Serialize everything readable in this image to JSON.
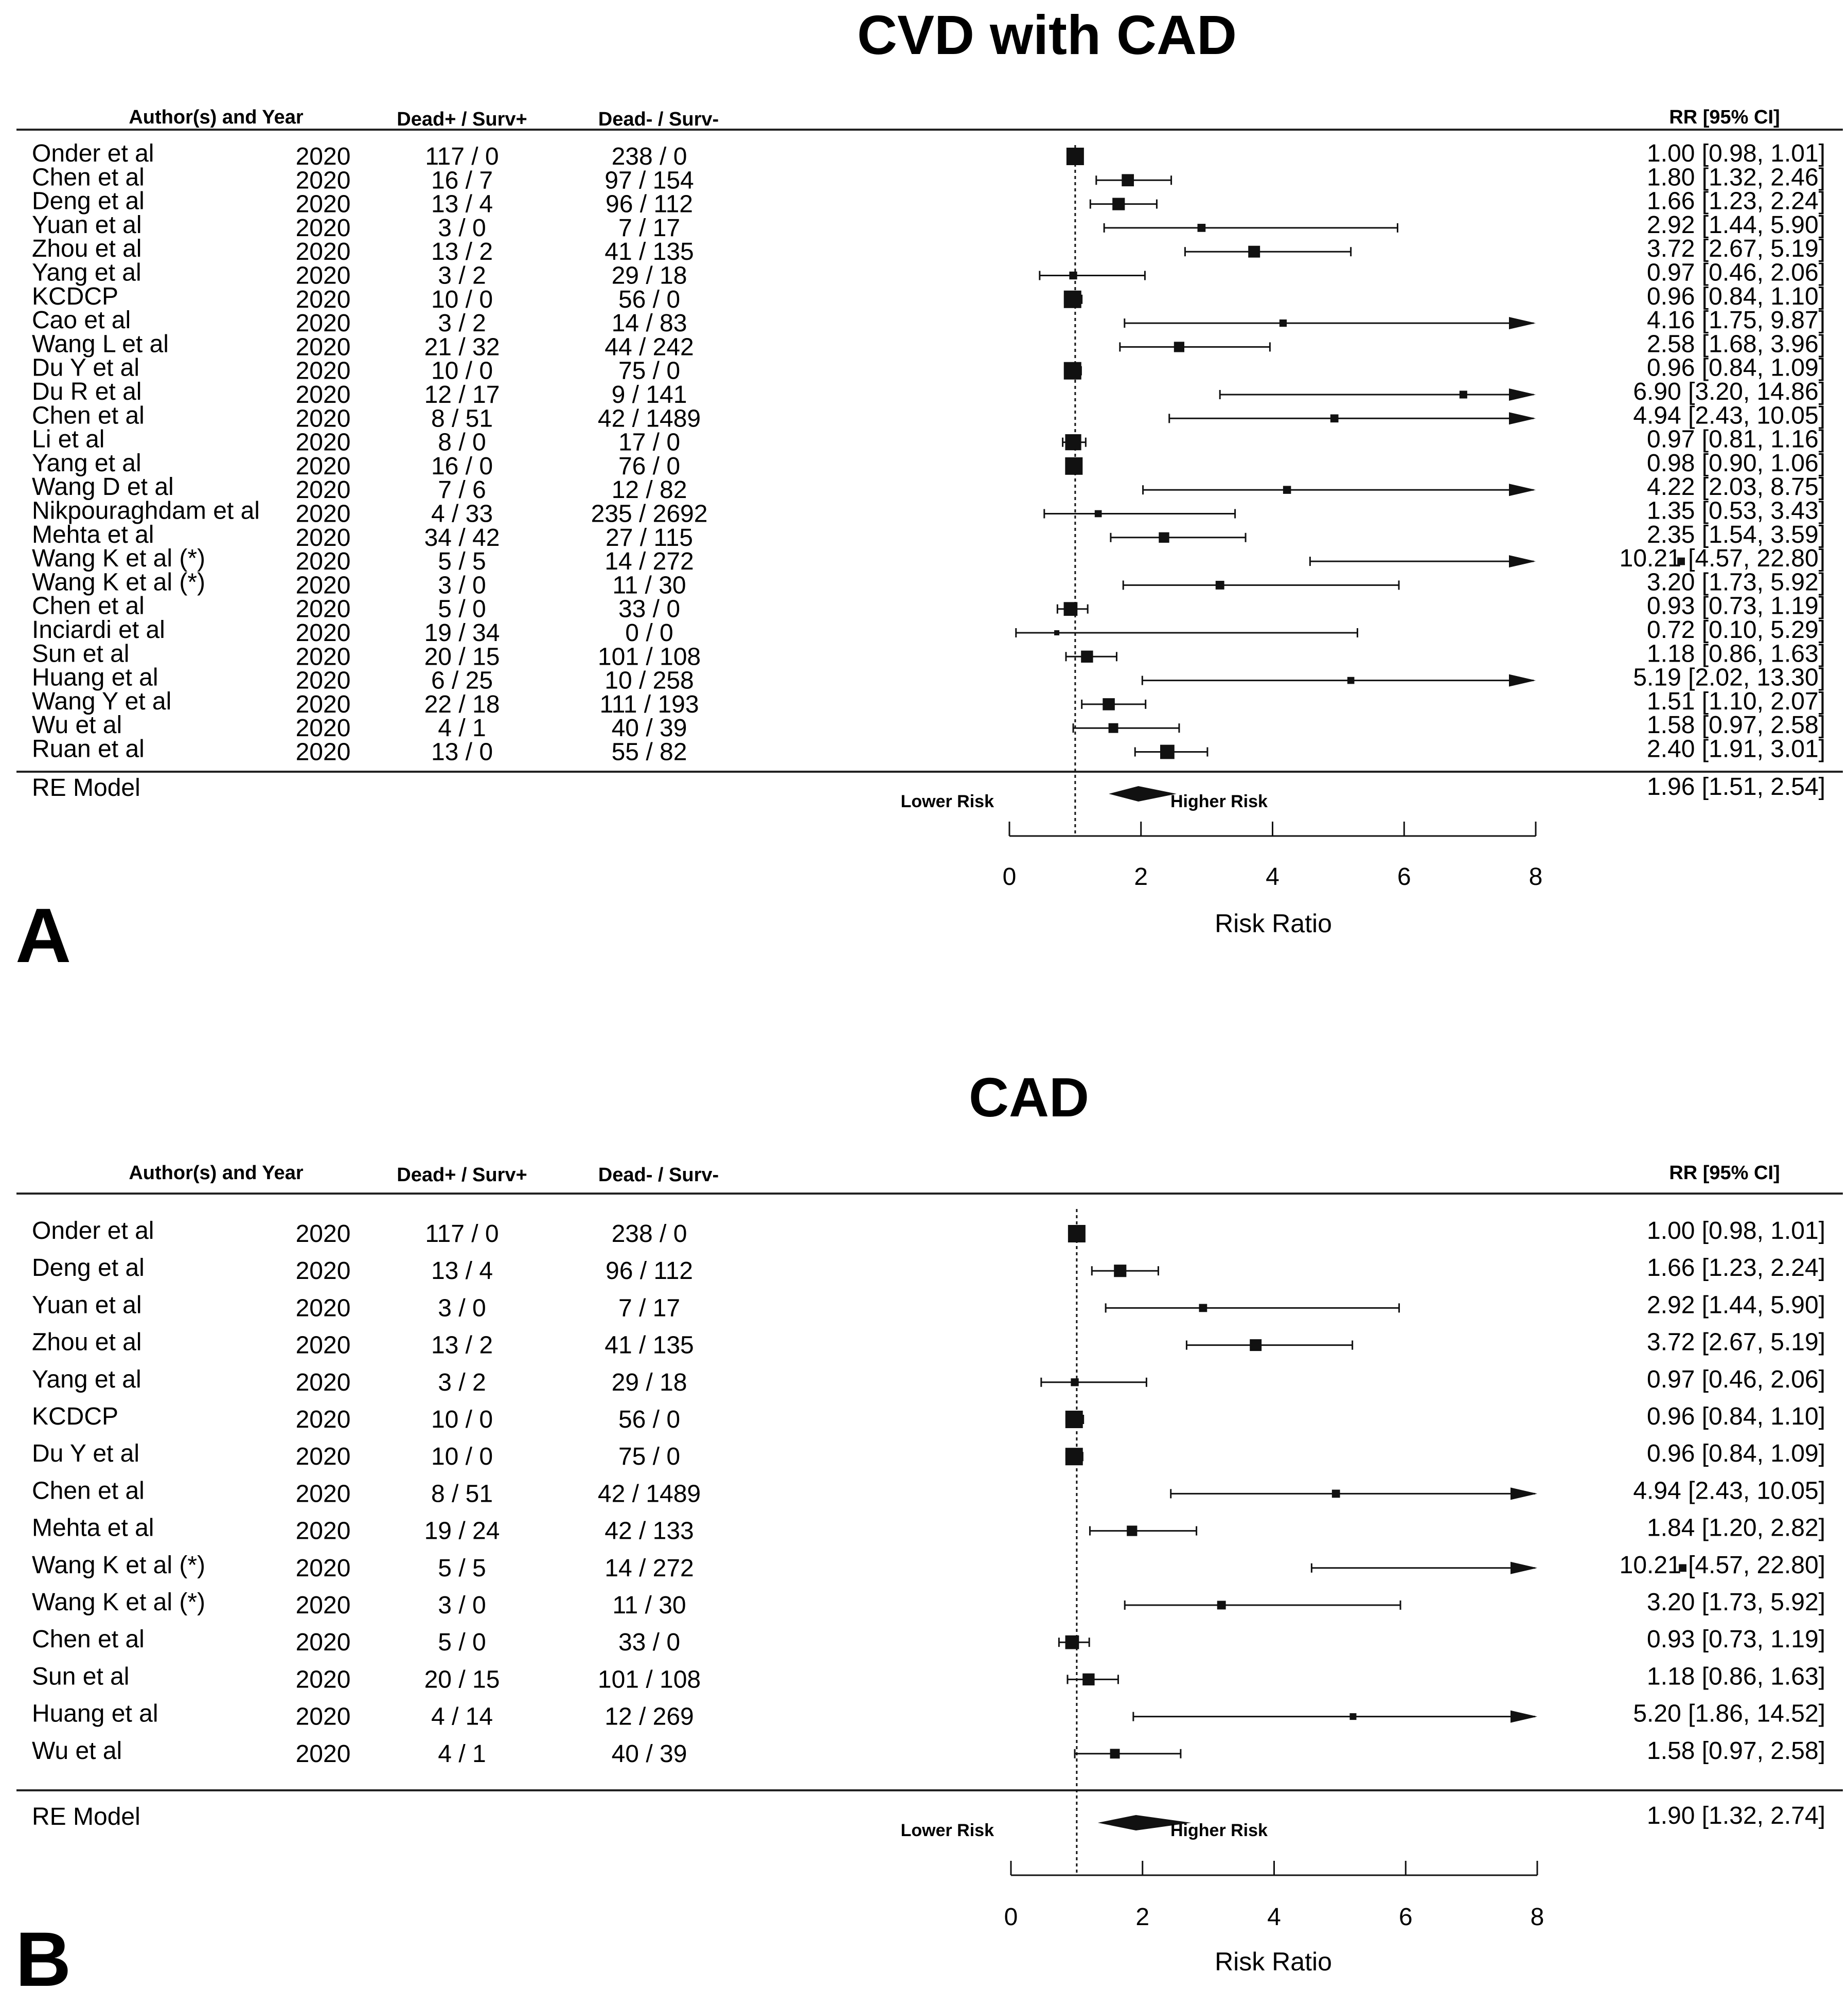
{
  "chart_data": [
    {
      "type": "forest",
      "panel_label": "A",
      "title": "CVD with CAD",
      "columns": {
        "author_year": "Author(s) and Year",
        "events": "Dead+ / Surv+",
        "controls": "Dead- / Surv-",
        "estimate": "RR [95% CI]"
      },
      "xlabel": "Risk Ratio",
      "xlim": [
        0,
        8
      ],
      "xticks": [
        "0",
        "2",
        "4",
        "6",
        "8"
      ],
      "reference_line": 1,
      "annotations": {
        "left": "Lower Risk",
        "right": "Higher Risk"
      },
      "studies": [
        {
          "author": "Onder et al",
          "year": "2020",
          "events": "117 / 0",
          "controls": "238 / 0",
          "rr": 1.0,
          "lo": 0.98,
          "hi": 1.01,
          "label": "1.00 [0.98,  1.01]"
        },
        {
          "author": "Chen et al",
          "year": "2020",
          "events": "16 / 7",
          "controls": "97 / 154",
          "rr": 1.8,
          "lo": 1.32,
          "hi": 2.46,
          "label": "1.80 [1.32,  2.46]"
        },
        {
          "author": "Deng et al",
          "year": "2020",
          "events": "13 / 4",
          "controls": "96 / 112",
          "rr": 1.66,
          "lo": 1.23,
          "hi": 2.24,
          "label": "1.66 [1.23,  2.24]"
        },
        {
          "author": "Yuan et al",
          "year": "2020",
          "events": "3 / 0",
          "controls": "7 / 17",
          "rr": 2.92,
          "lo": 1.44,
          "hi": 5.9,
          "label": "2.92 [1.44,  5.90]"
        },
        {
          "author": "Zhou et al",
          "year": "2020",
          "events": "13 / 2",
          "controls": "41 / 135",
          "rr": 3.72,
          "lo": 2.67,
          "hi": 5.19,
          "label": "3.72 [2.67,  5.19]"
        },
        {
          "author": "Yang et al",
          "year": "2020",
          "events": "3 / 2",
          "controls": "29 / 18",
          "rr": 0.97,
          "lo": 0.46,
          "hi": 2.06,
          "label": "0.97 [0.46,  2.06]"
        },
        {
          "author": "KCDCP",
          "year": "2020",
          "events": "10 / 0",
          "controls": "56 / 0",
          "rr": 0.96,
          "lo": 0.84,
          "hi": 1.1,
          "label": "0.96 [0.84,  1.10]"
        },
        {
          "author": "Cao et al",
          "year": "2020",
          "events": "3 / 2",
          "controls": "14 / 83",
          "rr": 4.16,
          "lo": 1.75,
          "hi": 9.87,
          "label": "4.16 [1.75,  9.87]"
        },
        {
          "author": "Wang L et al",
          "year": "2020",
          "events": "21 / 32",
          "controls": "44 / 242",
          "rr": 2.58,
          "lo": 1.68,
          "hi": 3.96,
          "label": "2.58 [1.68,  3.96]"
        },
        {
          "author": "Du Y et al",
          "year": "2020",
          "events": "10 / 0",
          "controls": "75 / 0",
          "rr": 0.96,
          "lo": 0.84,
          "hi": 1.09,
          "label": "0.96 [0.84,  1.09]"
        },
        {
          "author": "Du R et al",
          "year": "2020",
          "events": "12 / 17",
          "controls": "9 / 141",
          "rr": 6.9,
          "lo": 3.2,
          "hi": 14.86,
          "label": "6.90 [3.20, 14.86]"
        },
        {
          "author": "Chen et al",
          "year": "2020",
          "events": "8 / 51",
          "controls": "42 / 1489",
          "rr": 4.94,
          "lo": 2.43,
          "hi": 10.05,
          "label": "4.94 [2.43, 10.05]"
        },
        {
          "author": "Li et al",
          "year": "2020",
          "events": "8 / 0",
          "controls": "17 / 0",
          "rr": 0.97,
          "lo": 0.81,
          "hi": 1.16,
          "label": "0.97 [0.81,  1.16]"
        },
        {
          "author": "Yang et al",
          "year": "2020",
          "events": "16 / 0",
          "controls": "76 / 0",
          "rr": 0.98,
          "lo": 0.9,
          "hi": 1.06,
          "label": "0.98 [0.90,  1.06]"
        },
        {
          "author": "Wang D et al",
          "year": "2020",
          "events": "7 / 6",
          "controls": "12 / 82",
          "rr": 4.22,
          "lo": 2.03,
          "hi": 8.75,
          "label": "4.22 [2.03,  8.75]"
        },
        {
          "author": "Nikpouraghdam et al",
          "year": "2020",
          "events": "4 / 33",
          "controls": "235 / 2692",
          "rr": 1.35,
          "lo": 0.53,
          "hi": 3.43,
          "label": "1.35 [0.53,  3.43]"
        },
        {
          "author": "Mehta et al",
          "year": "2020",
          "events": "34 / 42",
          "controls": "27 / 115",
          "rr": 2.35,
          "lo": 1.54,
          "hi": 3.59,
          "label": "2.35 [1.54,  3.59]"
        },
        {
          "author": "Wang K et al (*)",
          "year": "2020",
          "events": "5 / 5",
          "controls": "14 / 272",
          "rr": 10.21,
          "lo": 4.57,
          "hi": 22.8,
          "label": "10.21 [4.57, 22.80]"
        },
        {
          "author": "Wang K et al (*)",
          "year": "2020",
          "events": "3 / 0",
          "controls": "11 / 30",
          "rr": 3.2,
          "lo": 1.73,
          "hi": 5.92,
          "label": "3.20 [1.73,  5.92]"
        },
        {
          "author": "Chen et al",
          "year": "2020",
          "events": "5 / 0",
          "controls": "33 / 0",
          "rr": 0.93,
          "lo": 0.73,
          "hi": 1.19,
          "label": "0.93 [0.73,  1.19]"
        },
        {
          "author": "Inciardi et al",
          "year": "2020",
          "events": "19 / 34",
          "controls": "0 / 0",
          "rr": 0.72,
          "lo": 0.1,
          "hi": 5.29,
          "label": "0.72 [0.10,  5.29]"
        },
        {
          "author": "Sun et al",
          "year": "2020",
          "events": "20 / 15",
          "controls": "101 / 108",
          "rr": 1.18,
          "lo": 0.86,
          "hi": 1.63,
          "label": "1.18 [0.86,  1.63]"
        },
        {
          "author": "Huang et al",
          "year": "2020",
          "events": "6 / 25",
          "controls": "10 / 258",
          "rr": 5.19,
          "lo": 2.02,
          "hi": 13.3,
          "label": "5.19 [2.02, 13.30]"
        },
        {
          "author": "Wang Y et al",
          "year": "2020",
          "events": "22 / 18",
          "controls": "111 / 193",
          "rr": 1.51,
          "lo": 1.1,
          "hi": 2.07,
          "label": "1.51 [1.10,  2.07]"
        },
        {
          "author": "Wu et al",
          "year": "2020",
          "events": "4 / 1",
          "controls": "40 / 39",
          "rr": 1.58,
          "lo": 0.97,
          "hi": 2.58,
          "label": "1.58 [0.97,  2.58]"
        },
        {
          "author": "Ruan et al",
          "year": "2020",
          "events": "13 / 0",
          "controls": "55 / 82",
          "rr": 2.4,
          "lo": 1.91,
          "hi": 3.01,
          "label": "2.40 [1.91,  3.01]"
        }
      ],
      "summary": {
        "name": "RE Model",
        "rr": 1.96,
        "lo": 1.51,
        "hi": 2.54,
        "label": "1.96 [1.51,  2.54]"
      }
    },
    {
      "type": "forest",
      "panel_label": "B",
      "title": "CAD",
      "columns": {
        "author_year": "Author(s) and Year",
        "events": "Dead+ / Surv+",
        "controls": "Dead- / Surv-",
        "estimate": "RR [95% CI]"
      },
      "xlabel": "Risk Ratio",
      "xlim": [
        0,
        8
      ],
      "xticks": [
        "0",
        "2",
        "4",
        "6",
        "8"
      ],
      "reference_line": 1,
      "annotations": {
        "left": "Lower Risk",
        "right": "Higher Risk"
      },
      "studies": [
        {
          "author": "Onder et al",
          "year": "2020",
          "events": "117 / 0",
          "controls": "238 / 0",
          "rr": 1.0,
          "lo": 0.98,
          "hi": 1.01,
          "label": "1.00 [0.98,  1.01]"
        },
        {
          "author": "Deng et al",
          "year": "2020",
          "events": "13 / 4",
          "controls": "96 / 112",
          "rr": 1.66,
          "lo": 1.23,
          "hi": 2.24,
          "label": "1.66 [1.23,  2.24]"
        },
        {
          "author": "Yuan et al",
          "year": "2020",
          "events": "3 / 0",
          "controls": "7 / 17",
          "rr": 2.92,
          "lo": 1.44,
          "hi": 5.9,
          "label": "2.92 [1.44,  5.90]"
        },
        {
          "author": "Zhou et al",
          "year": "2020",
          "events": "13 / 2",
          "controls": "41 / 135",
          "rr": 3.72,
          "lo": 2.67,
          "hi": 5.19,
          "label": "3.72 [2.67,  5.19]"
        },
        {
          "author": "Yang et al",
          "year": "2020",
          "events": "3 / 2",
          "controls": "29 / 18",
          "rr": 0.97,
          "lo": 0.46,
          "hi": 2.06,
          "label": "0.97 [0.46,  2.06]"
        },
        {
          "author": "KCDCP",
          "year": "2020",
          "events": "10 / 0",
          "controls": "56 / 0",
          "rr": 0.96,
          "lo": 0.84,
          "hi": 1.1,
          "label": "0.96 [0.84,  1.10]"
        },
        {
          "author": "Du Y et al",
          "year": "2020",
          "events": "10 / 0",
          "controls": "75 / 0",
          "rr": 0.96,
          "lo": 0.84,
          "hi": 1.09,
          "label": "0.96 [0.84,  1.09]"
        },
        {
          "author": "Chen et al",
          "year": "2020",
          "events": "8 / 51",
          "controls": "42 / 1489",
          "rr": 4.94,
          "lo": 2.43,
          "hi": 10.05,
          "label": "4.94 [2.43, 10.05]"
        },
        {
          "author": "Mehta et al",
          "year": "2020",
          "events": "19 / 24",
          "controls": "42 / 133",
          "rr": 1.84,
          "lo": 1.2,
          "hi": 2.82,
          "label": "1.84 [1.20,  2.82]"
        },
        {
          "author": "Wang K et al (*)",
          "year": "2020",
          "events": "5 / 5",
          "controls": "14 / 272",
          "rr": 10.21,
          "lo": 4.57,
          "hi": 22.8,
          "label": "10.21 [4.57, 22.80]"
        },
        {
          "author": "Wang K et al (*)",
          "year": "2020",
          "events": "3 / 0",
          "controls": "11 / 30",
          "rr": 3.2,
          "lo": 1.73,
          "hi": 5.92,
          "label": "3.20 [1.73,  5.92]"
        },
        {
          "author": "Chen et al",
          "year": "2020",
          "events": "5 / 0",
          "controls": "33 / 0",
          "rr": 0.93,
          "lo": 0.73,
          "hi": 1.19,
          "label": "0.93 [0.73,  1.19]"
        },
        {
          "author": "Sun et al",
          "year": "2020",
          "events": "20 / 15",
          "controls": "101 / 108",
          "rr": 1.18,
          "lo": 0.86,
          "hi": 1.63,
          "label": "1.18 [0.86,  1.63]"
        },
        {
          "author": "Huang et al",
          "year": "2020",
          "events": "4 / 14",
          "controls": "12 / 269",
          "rr": 5.2,
          "lo": 1.86,
          "hi": 14.52,
          "label": "5.20 [1.86, 14.52]"
        },
        {
          "author": "Wu et al",
          "year": "2020",
          "events": "4 / 1",
          "controls": "40 / 39",
          "rr": 1.58,
          "lo": 0.97,
          "hi": 2.58,
          "label": "1.58 [0.97,  2.58]"
        }
      ],
      "summary": {
        "name": "RE Model",
        "rr": 1.9,
        "lo": 1.32,
        "hi": 2.74,
        "label": "1.90 [1.32,  2.74]"
      }
    }
  ]
}
